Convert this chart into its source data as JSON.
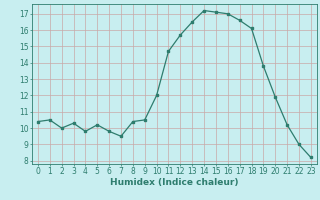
{
  "x": [
    0,
    1,
    2,
    3,
    4,
    5,
    6,
    7,
    8,
    9,
    10,
    11,
    12,
    13,
    14,
    15,
    16,
    17,
    18,
    19,
    20,
    21,
    22,
    23
  ],
  "y": [
    10.4,
    10.5,
    10.0,
    10.3,
    9.8,
    10.2,
    9.8,
    9.5,
    10.4,
    10.5,
    12.0,
    14.7,
    15.7,
    16.5,
    17.2,
    17.1,
    17.0,
    16.6,
    16.1,
    13.8,
    11.9,
    10.2,
    9.0,
    8.2
  ],
  "line_color": "#2e7d6e",
  "bg_color": "#c8eef0",
  "grid_major_color": "#c8a8a8",
  "grid_minor_color": "#ddbcbc",
  "xlabel": "Humidex (Indice chaleur)",
  "ylim": [
    7.8,
    17.6
  ],
  "xlim": [
    -0.5,
    23.5
  ],
  "yticks": [
    8,
    9,
    10,
    11,
    12,
    13,
    14,
    15,
    16,
    17
  ],
  "xticks": [
    0,
    1,
    2,
    3,
    4,
    5,
    6,
    7,
    8,
    9,
    10,
    11,
    12,
    13,
    14,
    15,
    16,
    17,
    18,
    19,
    20,
    21,
    22,
    23
  ],
  "label_fontsize": 6.5,
  "tick_fontsize": 5.5,
  "marker_size": 2.0,
  "line_width": 0.9
}
